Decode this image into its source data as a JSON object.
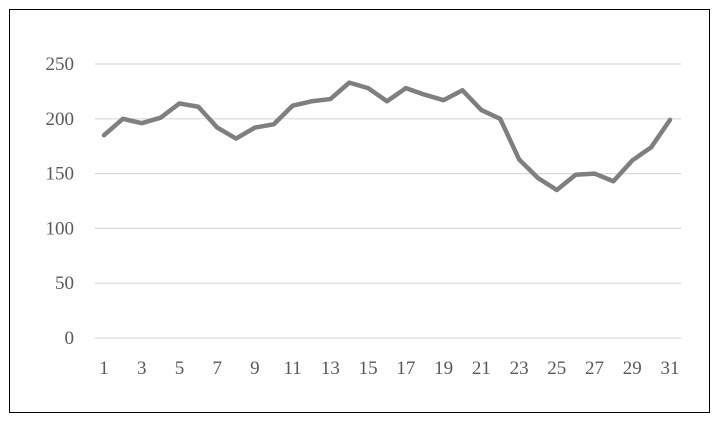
{
  "chart_data": {
    "type": "line",
    "title": "",
    "xlabel": "",
    "ylabel": "",
    "x": [
      1,
      2,
      3,
      4,
      5,
      6,
      7,
      8,
      9,
      10,
      11,
      12,
      13,
      14,
      15,
      16,
      17,
      18,
      19,
      20,
      21,
      22,
      23,
      24,
      25,
      26,
      27,
      28,
      29,
      30,
      31
    ],
    "x_tick_labels": [
      "1",
      "3",
      "5",
      "7",
      "9",
      "11",
      "13",
      "15",
      "17",
      "19",
      "21",
      "23",
      "25",
      "27",
      "29",
      "31"
    ],
    "y_ticks": [
      0,
      50,
      100,
      150,
      200,
      250
    ],
    "ylim": [
      0,
      250
    ],
    "grid": true,
    "legend": "none",
    "series": [
      {
        "values": [
          185,
          200,
          196,
          201,
          214,
          211,
          192,
          182,
          192,
          195,
          212,
          216,
          218,
          233,
          228,
          216,
          228,
          222,
          217,
          226,
          208,
          200,
          163,
          146,
          135,
          149,
          150,
          143,
          162,
          174,
          199
        ],
        "color": "#7f7f7f"
      }
    ],
    "colors": {
      "line": "#7f7f7f",
      "grid": "#d9d9d9",
      "tick_text": "#595959",
      "frame": "#000000"
    }
  }
}
